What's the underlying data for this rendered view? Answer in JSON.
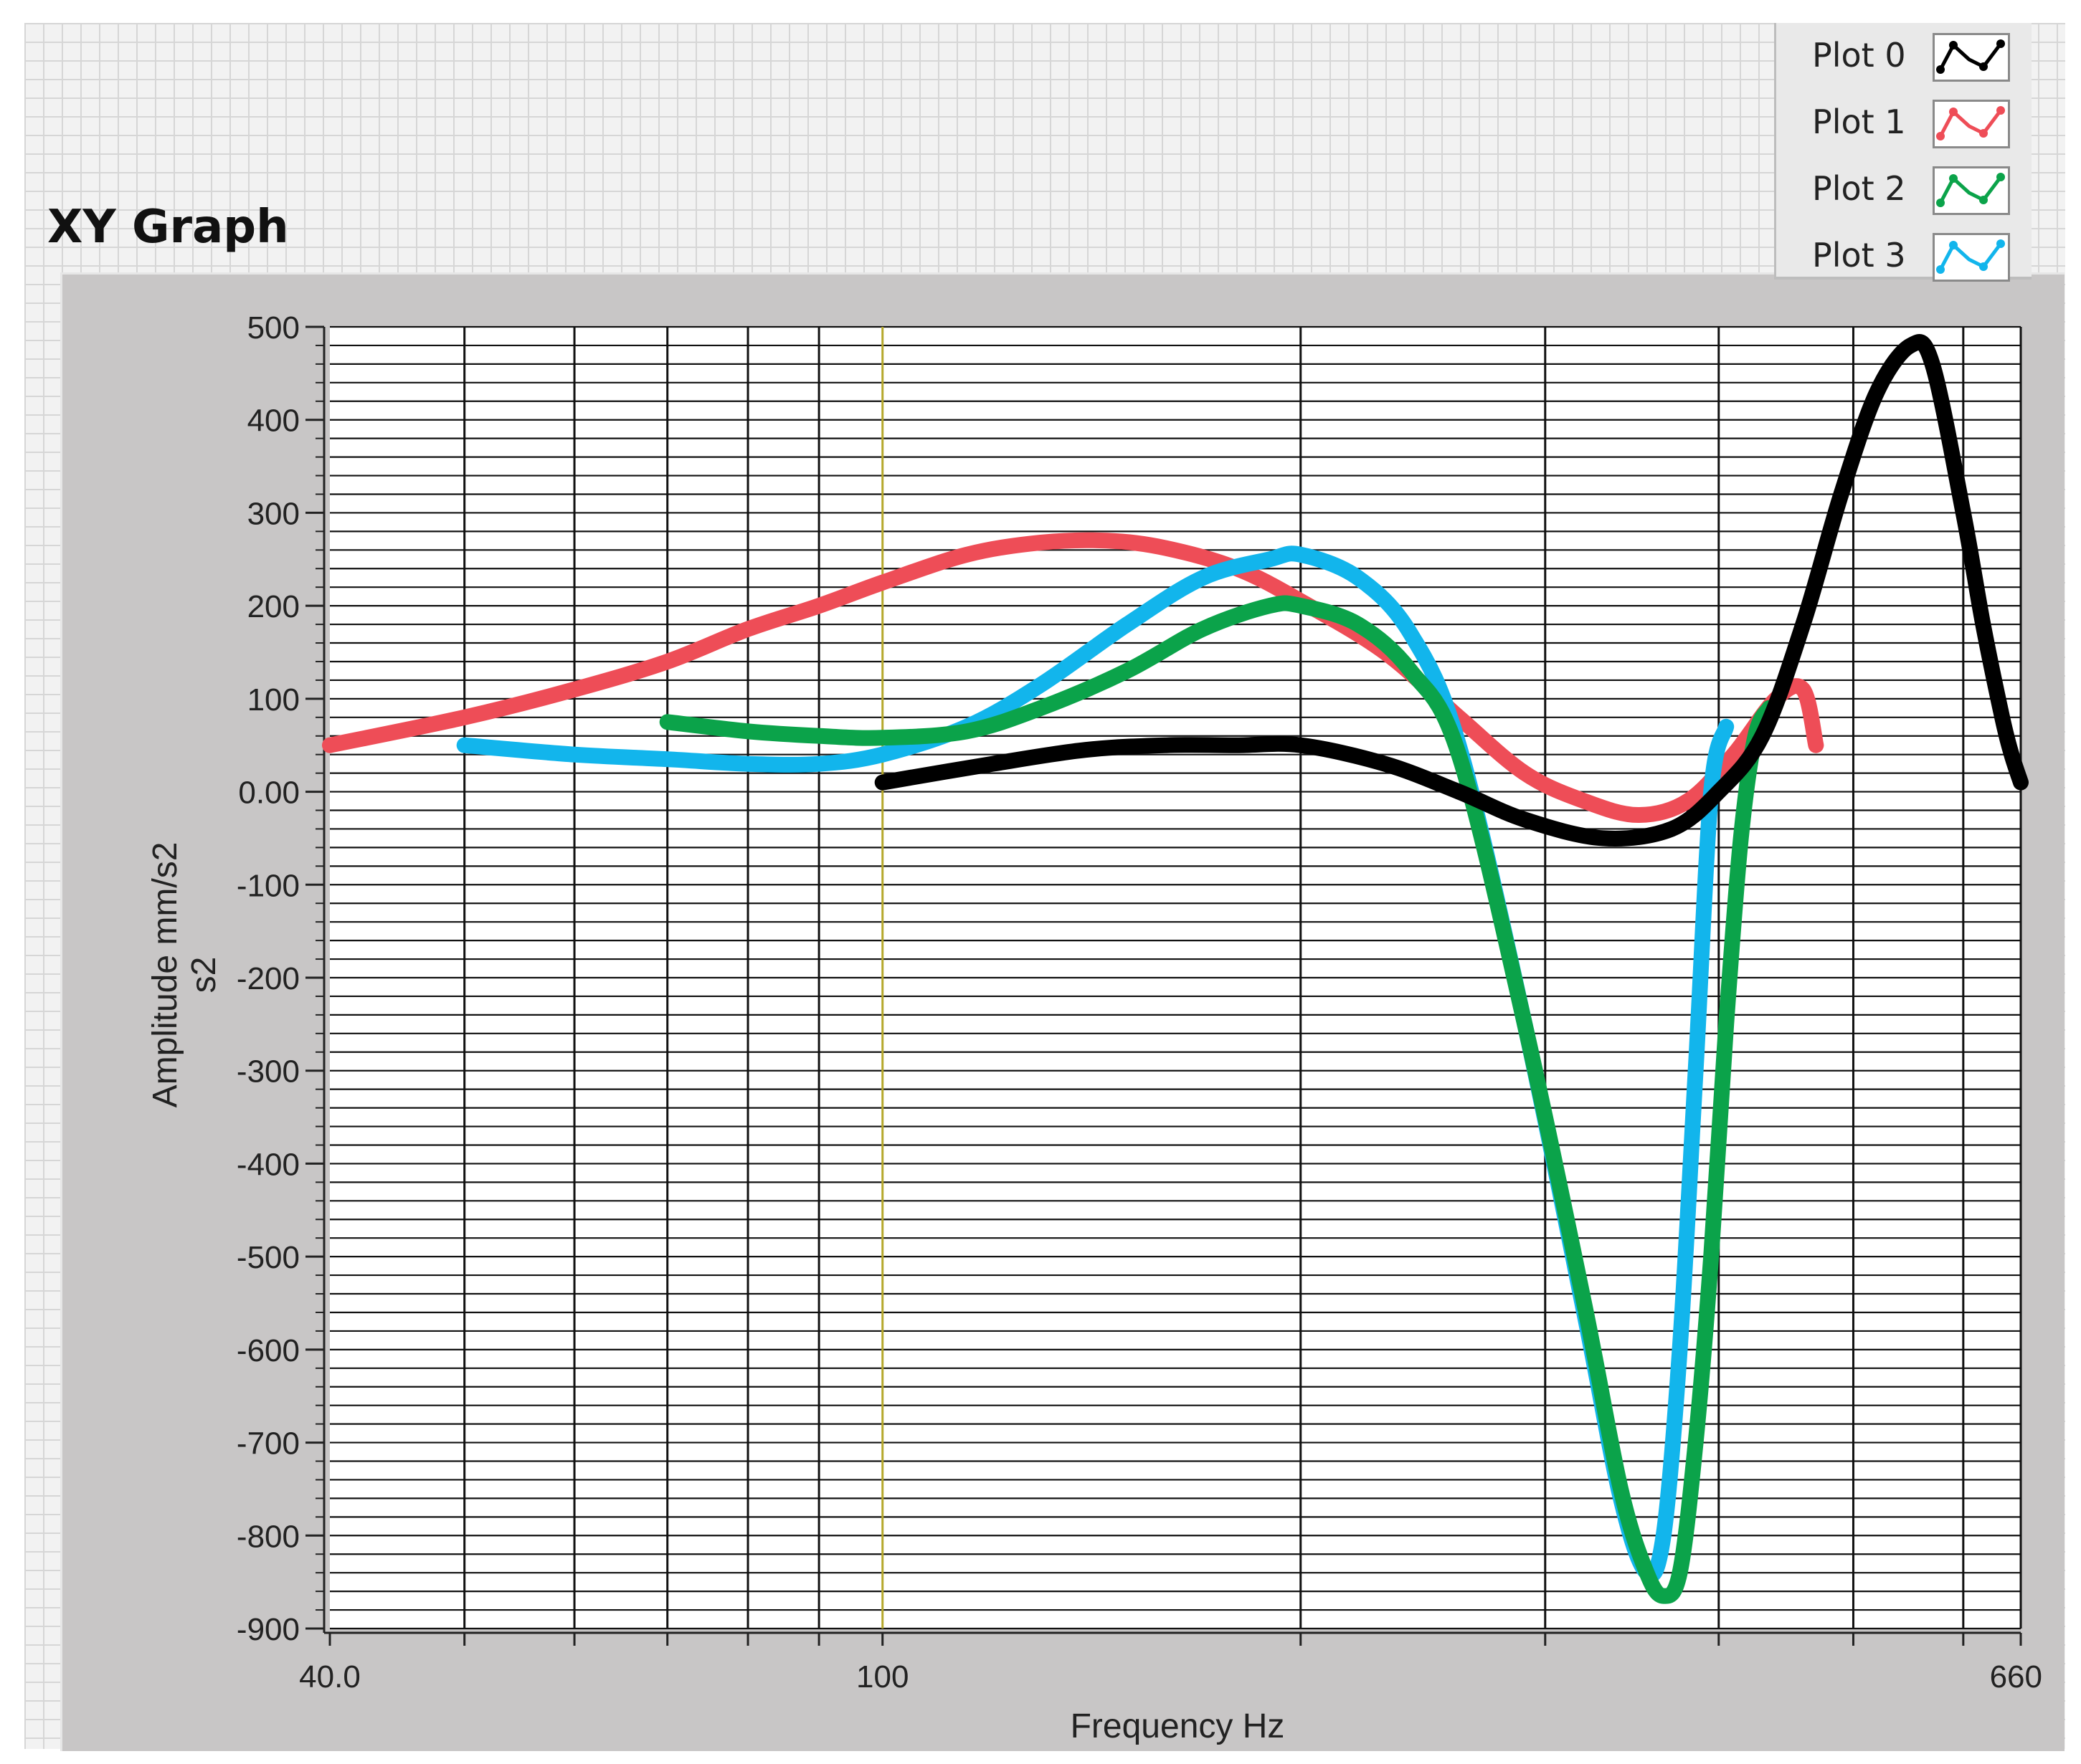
{
  "window": {
    "graph_title": "XY Graph"
  },
  "legend": [
    {
      "name": "Plot 0",
      "color": "#000000"
    },
    {
      "name": "Plot 1",
      "color": "#ee4d57"
    },
    {
      "name": "Plot 2",
      "color": "#0ba34a"
    },
    {
      "name": "Plot 3",
      "color": "#12b5ec"
    }
  ],
  "chart_data": {
    "type": "line",
    "title": "XY Graph",
    "xlabel": "Frequency Hz",
    "ylabel": "Amplitude mm/s2\ns2",
    "x_scale": "log",
    "xlim": [
      40,
      660
    ],
    "ylim": [
      -900,
      500
    ],
    "x_tick_labels": [
      "40.0",
      "100",
      "660"
    ],
    "y_tick_labels": [
      "500",
      "400",
      "300",
      "200",
      "100",
      "0.00",
      "-100",
      "-200",
      "-300",
      "-400",
      "-500",
      "-600",
      "-700",
      "-800",
      "-900"
    ],
    "grid": true,
    "legend_position": "top-right",
    "series": [
      {
        "name": "Plot 0",
        "color": "#000000",
        "x": [
          100,
          120,
          140,
          160,
          180,
          200,
          230,
          260,
          290,
          330,
          370,
          400,
          430,
          460,
          490,
          520,
          550,
          570,
          600,
          620,
          640,
          650,
          660
        ],
        "y": [
          10,
          30,
          45,
          50,
          50,
          50,
          30,
          0,
          -30,
          -50,
          -40,
          0,
          60,
          180,
          320,
          430,
          480,
          460,
          300,
          180,
          80,
          40,
          10
        ]
      },
      {
        "name": "Plot 1",
        "color": "#ee4d57",
        "x": [
          40,
          50,
          60,
          70,
          80,
          90,
          100,
          115,
          130,
          145,
          160,
          180,
          200,
          230,
          260,
          290,
          320,
          350,
          380,
          410,
          440,
          460,
          470
        ],
        "y": [
          50,
          80,
          110,
          140,
          175,
          200,
          225,
          255,
          268,
          270,
          262,
          240,
          205,
          150,
          80,
          20,
          -10,
          -25,
          -10,
          40,
          100,
          110,
          50
        ]
      },
      {
        "name": "Plot 2",
        "color": "#0ba34a",
        "x": [
          70,
          80,
          90,
          100,
          115,
          130,
          150,
          170,
          190,
          200,
          220,
          240,
          260,
          290,
          320,
          340,
          355,
          365,
          375,
          385,
          395,
          405,
          415,
          425,
          435
        ],
        "y": [
          75,
          65,
          60,
          58,
          65,
          90,
          130,
          175,
          200,
          200,
          180,
          130,
          40,
          -250,
          -550,
          -750,
          -840,
          -865,
          -840,
          -700,
          -500,
          -250,
          -50,
          60,
          90
        ]
      },
      {
        "name": "Plot 3",
        "color": "#12b5ec",
        "x": [
          50,
          60,
          70,
          80,
          90,
          100,
          115,
          130,
          150,
          170,
          190,
          200,
          220,
          240,
          260,
          290,
          320,
          340,
          355,
          365,
          375,
          385,
          395,
          405
        ],
        "y": [
          50,
          40,
          35,
          30,
          30,
          40,
          70,
          115,
          180,
          230,
          250,
          255,
          230,
          170,
          50,
          -250,
          -560,
          -760,
          -840,
          -800,
          -600,
          -300,
          0,
          70
        ]
      }
    ]
  }
}
